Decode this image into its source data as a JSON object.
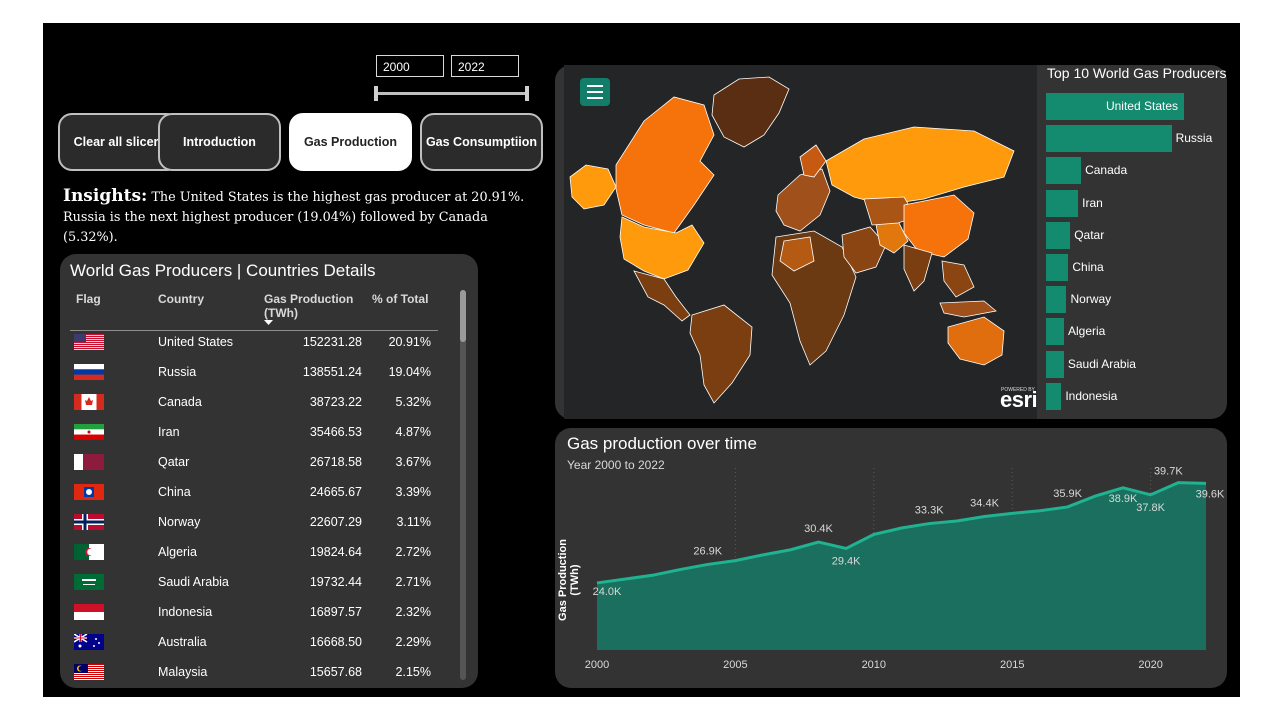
{
  "slicer": {
    "start_year": "2000",
    "end_year": "2022"
  },
  "nav": {
    "clear": "Clear all slicers",
    "intro": "Introduction",
    "production": "Gas Production",
    "consumption": "Gas Consumptiion"
  },
  "insights": {
    "label": "Insights:",
    "text": " The United States is the highest gas producer at 20.91%. Russia is the next highest producer (19.04%) followed by Canada (5.32%)."
  },
  "table": {
    "title": "World Gas Producers | Countries Details",
    "headers": {
      "flag": "Flag",
      "country": "Country",
      "production": "Gas Production (TWh)",
      "pct": "% of Total"
    },
    "rows": [
      {
        "country": "United States",
        "production": "152231.28",
        "pct": "20.91%"
      },
      {
        "country": "Russia",
        "production": "138551.24",
        "pct": "19.04%"
      },
      {
        "country": "Canada",
        "production": "38723.22",
        "pct": "5.32%"
      },
      {
        "country": "Iran",
        "production": "35466.53",
        "pct": "4.87%"
      },
      {
        "country": "Qatar",
        "production": "26718.58",
        "pct": "3.67%"
      },
      {
        "country": "China",
        "production": "24665.67",
        "pct": "3.39%"
      },
      {
        "country": "Norway",
        "production": "22607.29",
        "pct": "3.11%"
      },
      {
        "country": "Algeria",
        "production": "19824.64",
        "pct": "2.72%"
      },
      {
        "country": "Saudi Arabia",
        "production": "19732.44",
        "pct": "2.71%"
      },
      {
        "country": "Indonesia",
        "production": "16897.57",
        "pct": "2.32%"
      },
      {
        "country": "Australia",
        "production": "16668.50",
        "pct": "2.29%"
      },
      {
        "country": "Malaysia",
        "production": "15657.68",
        "pct": "2.15%"
      }
    ]
  },
  "map": {
    "attribution_small": "POWERED BY",
    "attribution": "esri"
  },
  "top10": {
    "title": "Top 10 World Gas Producers",
    "bar_color": "#148a6f",
    "items": [
      {
        "label": "United States",
        "value": 152231.28
      },
      {
        "label": "Russia",
        "value": 138551.24
      },
      {
        "label": "Canada",
        "value": 38723.22
      },
      {
        "label": "Iran",
        "value": 35466.53
      },
      {
        "label": "Qatar",
        "value": 26718.58
      },
      {
        "label": "China",
        "value": 24665.67
      },
      {
        "label": "Norway",
        "value": 22607.29
      },
      {
        "label": "Algeria",
        "value": 19824.64
      },
      {
        "label": "Saudi Arabia",
        "value": 19732.44
      },
      {
        "label": "Indonesia",
        "value": 16897.57
      }
    ]
  },
  "chart_data": {
    "type": "area",
    "title": "Gas production over time",
    "subtitle": "Year 2000 to 2022",
    "ylabel": "Gas Production (TWh)",
    "xlabel": "",
    "x_ticks": [
      2000,
      2005,
      2010,
      2015,
      2020
    ],
    "x": [
      2000,
      2001,
      2002,
      2003,
      2004,
      2005,
      2006,
      2007,
      2008,
      2009,
      2010,
      2011,
      2012,
      2013,
      2014,
      2015,
      2016,
      2017,
      2018,
      2019,
      2020,
      2021,
      2022
    ],
    "values": [
      24000,
      24600,
      25200,
      26100,
      26900,
      27500,
      28400,
      29200,
      30400,
      29400,
      31600,
      32600,
      33300,
      33700,
      34400,
      34900,
      35300,
      35900,
      37600,
      38900,
      37800,
      39700,
      39600
    ],
    "labels": [
      {
        "x": 2000,
        "text": "24.0K"
      },
      {
        "x": 2004,
        "text": "26.9K"
      },
      {
        "x": 2008,
        "text": "30.4K"
      },
      {
        "x": 2009,
        "text": "29.4K"
      },
      {
        "x": 2012,
        "text": "33.3K"
      },
      {
        "x": 2014,
        "text": "34.4K"
      },
      {
        "x": 2017,
        "text": "35.9K"
      },
      {
        "x": 2019,
        "text": "38.9K"
      },
      {
        "x": 2020,
        "text": "37.8K"
      },
      {
        "x": 2021,
        "text": "39.7K"
      },
      {
        "x": 2022,
        "text": "39.6K"
      }
    ],
    "line_color": "#1fb391",
    "fill_color": "#1b6f5e",
    "grid": false
  }
}
